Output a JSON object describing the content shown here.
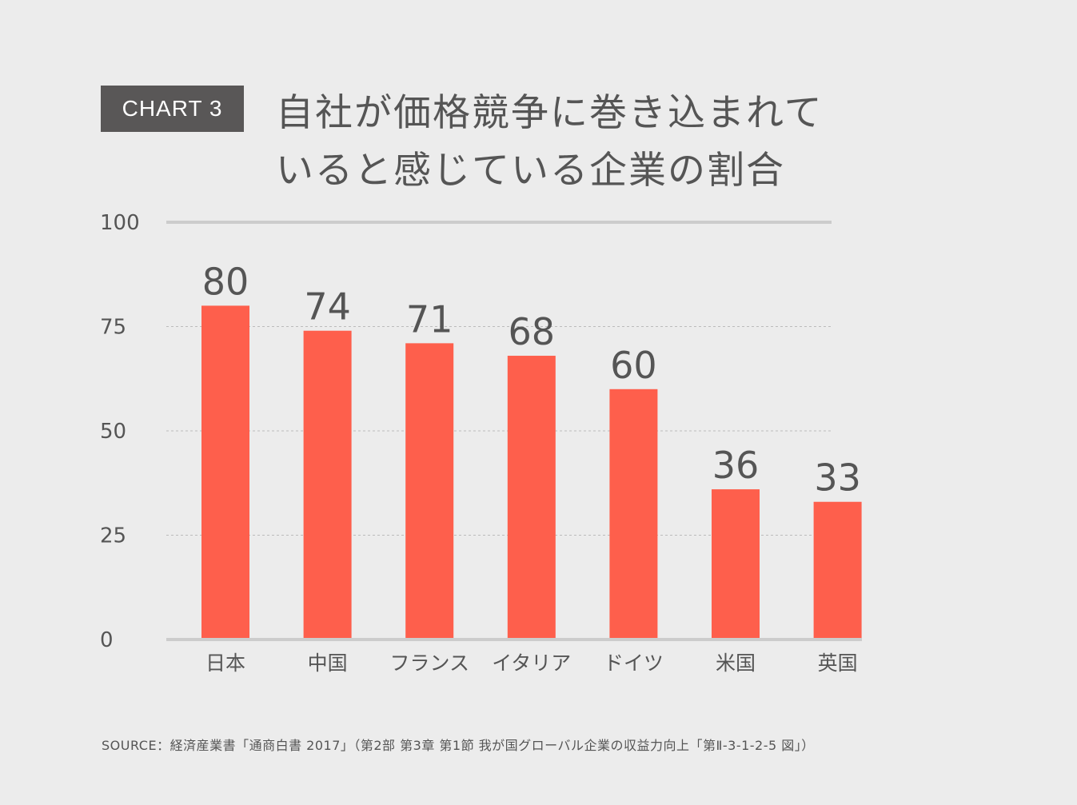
{
  "badge": "CHART 3",
  "title_lines": [
    "自社が価格競争に巻き込まれて",
    "いると感じている企業の割合"
  ],
  "source": "SOURCE：経済産業書「通商白書 2017」（第2部 第3章 第1節 我が国グローバル企業の収益力向上「第Ⅱ-3-1-2-5 図」）",
  "chart_data": {
    "type": "bar",
    "categories": [
      "日本",
      "中国",
      "フランス",
      "イタリア",
      "ドイツ",
      "米国",
      "英国"
    ],
    "values": [
      80,
      74,
      71,
      68,
      60,
      36,
      33
    ],
    "ylim": [
      0,
      100
    ],
    "yticks": [
      "0",
      "25",
      "50",
      "75",
      "100"
    ],
    "grid": true,
    "colors": {
      "bar": "#fe5f4c",
      "axis": "#cccccc",
      "grid": "#bbbbbb",
      "text": "#555555"
    }
  }
}
